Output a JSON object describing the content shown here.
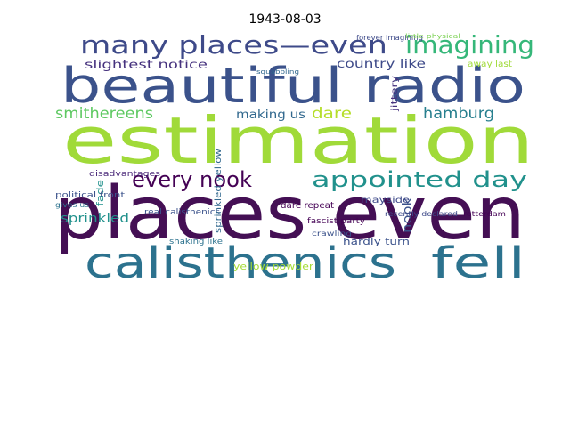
{
  "chart_data": {
    "type": "wordcloud",
    "title": "1943-08-03",
    "words": [
      {
        "text": "places even",
        "color": "#440f54"
      },
      {
        "text": "estimation",
        "color": "#a0da39"
      },
      {
        "text": "beautiful radio",
        "color": "#3b528b"
      },
      {
        "text": "calisthenics",
        "color": "#2c728e"
      },
      {
        "text": "fell",
        "color": "#2c728e"
      },
      {
        "text": "many places—even",
        "color": "#3e4a89"
      },
      {
        "text": "imagining",
        "color": "#35b779"
      },
      {
        "text": "every nook",
        "color": "#440154"
      },
      {
        "text": "appointed day",
        "color": "#21918c"
      },
      {
        "text": "smithereens",
        "color": "#5ec962"
      },
      {
        "text": "hamburg",
        "color": "#277f8e"
      },
      {
        "text": "slightest notice",
        "color": "#46327e"
      },
      {
        "text": "country like",
        "color": "#3e4a89"
      },
      {
        "text": "making us",
        "color": "#31688e"
      },
      {
        "text": "dare",
        "color": "#b5de2b"
      },
      {
        "text": "sprinkled",
        "color": "#21918c"
      },
      {
        "text": "nook",
        "color": "#3b528b"
      },
      {
        "text": "yellow powder",
        "color": "#a5db36"
      },
      {
        "text": "hardly turn",
        "color": "#3b528b"
      },
      {
        "text": "fade",
        "color": "#21918c"
      },
      {
        "text": "mayside",
        "color": "#3e4a89"
      },
      {
        "text": "political front",
        "color": "#3b528b"
      },
      {
        "text": "disadvantages",
        "color": "#482677"
      },
      {
        "text": "fascist party",
        "color": "#440154"
      },
      {
        "text": "forever imagining",
        "color": "#3e4a89"
      },
      {
        "text": "shaking like",
        "color": "#2c728e"
      },
      {
        "text": "real calisthenics",
        "color": "#3b528b"
      },
      {
        "text": "dare repeat",
        "color": "#440154"
      },
      {
        "text": "rotterdam",
        "color": "#440154"
      },
      {
        "text": "squabbling",
        "color": "#31688e"
      },
      {
        "text": "little physical",
        "color": "#7ad151"
      },
      {
        "text": "crawling",
        "color": "#3b528b"
      },
      {
        "text": "recently declared",
        "color": "#3e4a89"
      },
      {
        "text": "gives us",
        "color": "#2c728e"
      },
      {
        "text": "away last",
        "color": "#a0da39"
      },
      {
        "text": "sprinkled yellow",
        "color": "#31688e"
      },
      {
        "text": "jittery",
        "color": "#46327e"
      }
    ]
  }
}
